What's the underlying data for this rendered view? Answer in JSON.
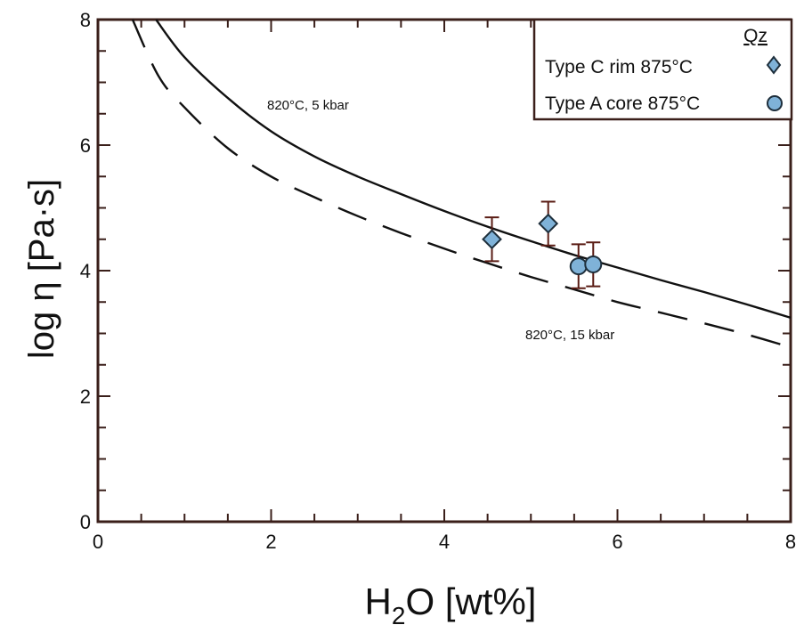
{
  "chart_data": {
    "type": "scatter",
    "xlabel": {
      "main": "H",
      "sub": "2",
      "rest": "O [wt%]"
    },
    "ylabel": "log η [Pa·s]",
    "xlim": [
      0,
      8
    ],
    "ylim": [
      0,
      8
    ],
    "x_ticks": [
      "0",
      "2",
      "4",
      "6",
      "8"
    ],
    "y_ticks": [
      "0",
      "2",
      "4",
      "6",
      "8"
    ],
    "annotations": {
      "solid_curve": "820°C, 5 kbar",
      "dashed_curve": "820°C, 15 kbar"
    },
    "legend": {
      "title": "Qz",
      "position": "top-right",
      "entries": [
        {
          "label": "Type C rim 875°C",
          "marker": "diamond"
        },
        {
          "label": "Type A core 875°C",
          "marker": "circle"
        }
      ]
    },
    "curves": [
      {
        "label_ref": "solid_curve",
        "style": "solid",
        "x": [
          0.67,
          1.0,
          1.5,
          2.0,
          2.5,
          3.0,
          3.5,
          4.0,
          4.5,
          5.0,
          5.5,
          6.0,
          6.5,
          7.0,
          7.5,
          8.0
        ],
        "y": [
          8.0,
          7.4,
          6.75,
          6.22,
          5.82,
          5.5,
          5.22,
          4.95,
          4.7,
          4.47,
          4.25,
          4.05,
          3.85,
          3.66,
          3.46,
          3.25
        ]
      },
      {
        "label_ref": "dashed_curve",
        "style": "dashed",
        "x": [
          0.4,
          0.7,
          1.0,
          1.5,
          2.0,
          2.5,
          3.0,
          3.5,
          4.0,
          4.5,
          5.0,
          5.5,
          6.0,
          6.5,
          7.0,
          7.5,
          8.0
        ],
        "y": [
          8.0,
          7.1,
          6.6,
          5.95,
          5.5,
          5.17,
          4.87,
          4.6,
          4.35,
          4.12,
          3.9,
          3.7,
          3.5,
          3.33,
          3.16,
          2.98,
          2.78
        ]
      }
    ],
    "series": [
      {
        "name": "Type C rim 875°C",
        "marker": "diamond",
        "points": [
          {
            "x": 4.55,
            "y": 4.5,
            "yerr_low": 4.15,
            "yerr_high": 4.85
          },
          {
            "x": 5.2,
            "y": 4.75,
            "yerr_low": 4.4,
            "yerr_high": 5.1
          }
        ]
      },
      {
        "name": "Type A core 875°C",
        "marker": "circle",
        "points": [
          {
            "x": 5.55,
            "y": 4.07,
            "yerr_low": 3.72,
            "yerr_high": 4.42
          },
          {
            "x": 5.72,
            "y": 4.1,
            "yerr_low": 3.75,
            "yerr_high": 4.45
          }
        ]
      }
    ],
    "colors": {
      "frame": "#3a1f1a",
      "marker_fill": "#7fb2d8",
      "errorbar": "#5a1c14"
    }
  }
}
